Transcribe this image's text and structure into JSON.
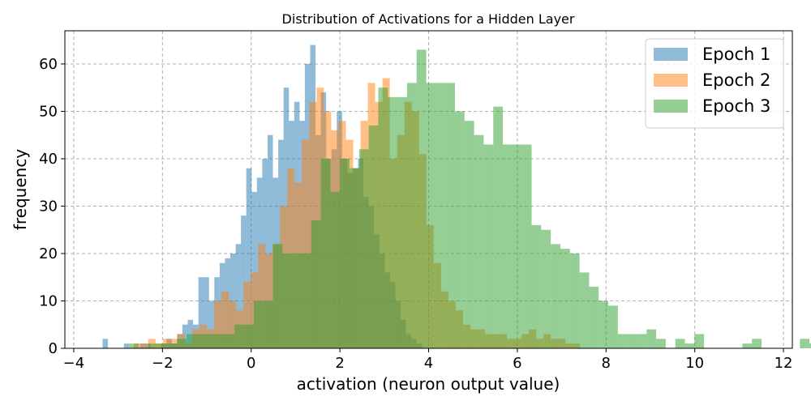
{
  "chart_data": {
    "type": "bar",
    "title": "Distribution of Activations for a Hidden Layer",
    "xlabel": "activation (neuron output value)",
    "ylabel": "frequency",
    "xlim": [
      -4.2,
      12.2
    ],
    "ylim": [
      0,
      67
    ],
    "xticks": [
      -4,
      -2,
      0,
      2,
      4,
      6,
      8,
      10,
      12
    ],
    "yticks": [
      0,
      10,
      20,
      30,
      40,
      50,
      60
    ],
    "grid": true,
    "legend_position": "top-right",
    "series": [
      {
        "name": "Epoch 1",
        "color": "#1f77b4",
        "bin_start": -3.35,
        "bin_width": 0.12,
        "counts": [
          2,
          0,
          0,
          0,
          1,
          0,
          0,
          1,
          1,
          0,
          0,
          1,
          2,
          1,
          3,
          5,
          6,
          5,
          15,
          15,
          10,
          15,
          18,
          19,
          20,
          22,
          28,
          38,
          33,
          36,
          40,
          45,
          36,
          44,
          55,
          48,
          52,
          48,
          60,
          64,
          45,
          54,
          40,
          42,
          50,
          40,
          37,
          38,
          40,
          32,
          30,
          24,
          20,
          16,
          14,
          10,
          6,
          3,
          2,
          1
        ]
      },
      {
        "name": "Epoch 2",
        "color": "#ff7f0e",
        "bin_start": -2.65,
        "bin_width": 0.165,
        "counts": [
          1,
          1,
          2,
          1,
          2,
          2,
          3,
          1,
          4,
          5,
          4,
          10,
          12,
          10,
          8,
          14,
          16,
          22,
          20,
          22,
          30,
          38,
          35,
          44,
          52,
          55,
          50,
          46,
          48,
          44,
          38,
          48,
          56,
          52,
          57,
          40,
          45,
          52,
          50,
          41,
          26,
          18,
          12,
          10,
          8,
          5,
          4,
          4,
          3,
          3,
          3,
          2,
          2,
          3,
          4,
          2,
          3,
          2,
          2,
          1,
          1
        ]
      },
      {
        "name": "Epoch 3",
        "color": "#2ca02c",
        "bin_start": -2.75,
        "bin_width": 0.216,
        "counts": [
          1,
          0,
          1,
          1,
          1,
          2,
          3,
          3,
          3,
          3,
          3,
          5,
          5,
          10,
          10,
          22,
          20,
          20,
          20,
          27,
          40,
          33,
          40,
          38,
          42,
          47,
          55,
          53,
          53,
          56,
          63,
          56,
          56,
          56,
          50,
          48,
          45,
          43,
          51,
          43,
          43,
          43,
          26,
          25,
          22,
          21,
          20,
          16,
          13,
          10,
          9,
          3,
          3,
          3,
          4,
          2,
          0,
          2,
          1,
          3,
          0,
          0,
          0,
          0,
          1,
          2,
          0,
          0,
          0,
          0,
          2,
          1,
          0,
          0
        ]
      }
    ]
  }
}
